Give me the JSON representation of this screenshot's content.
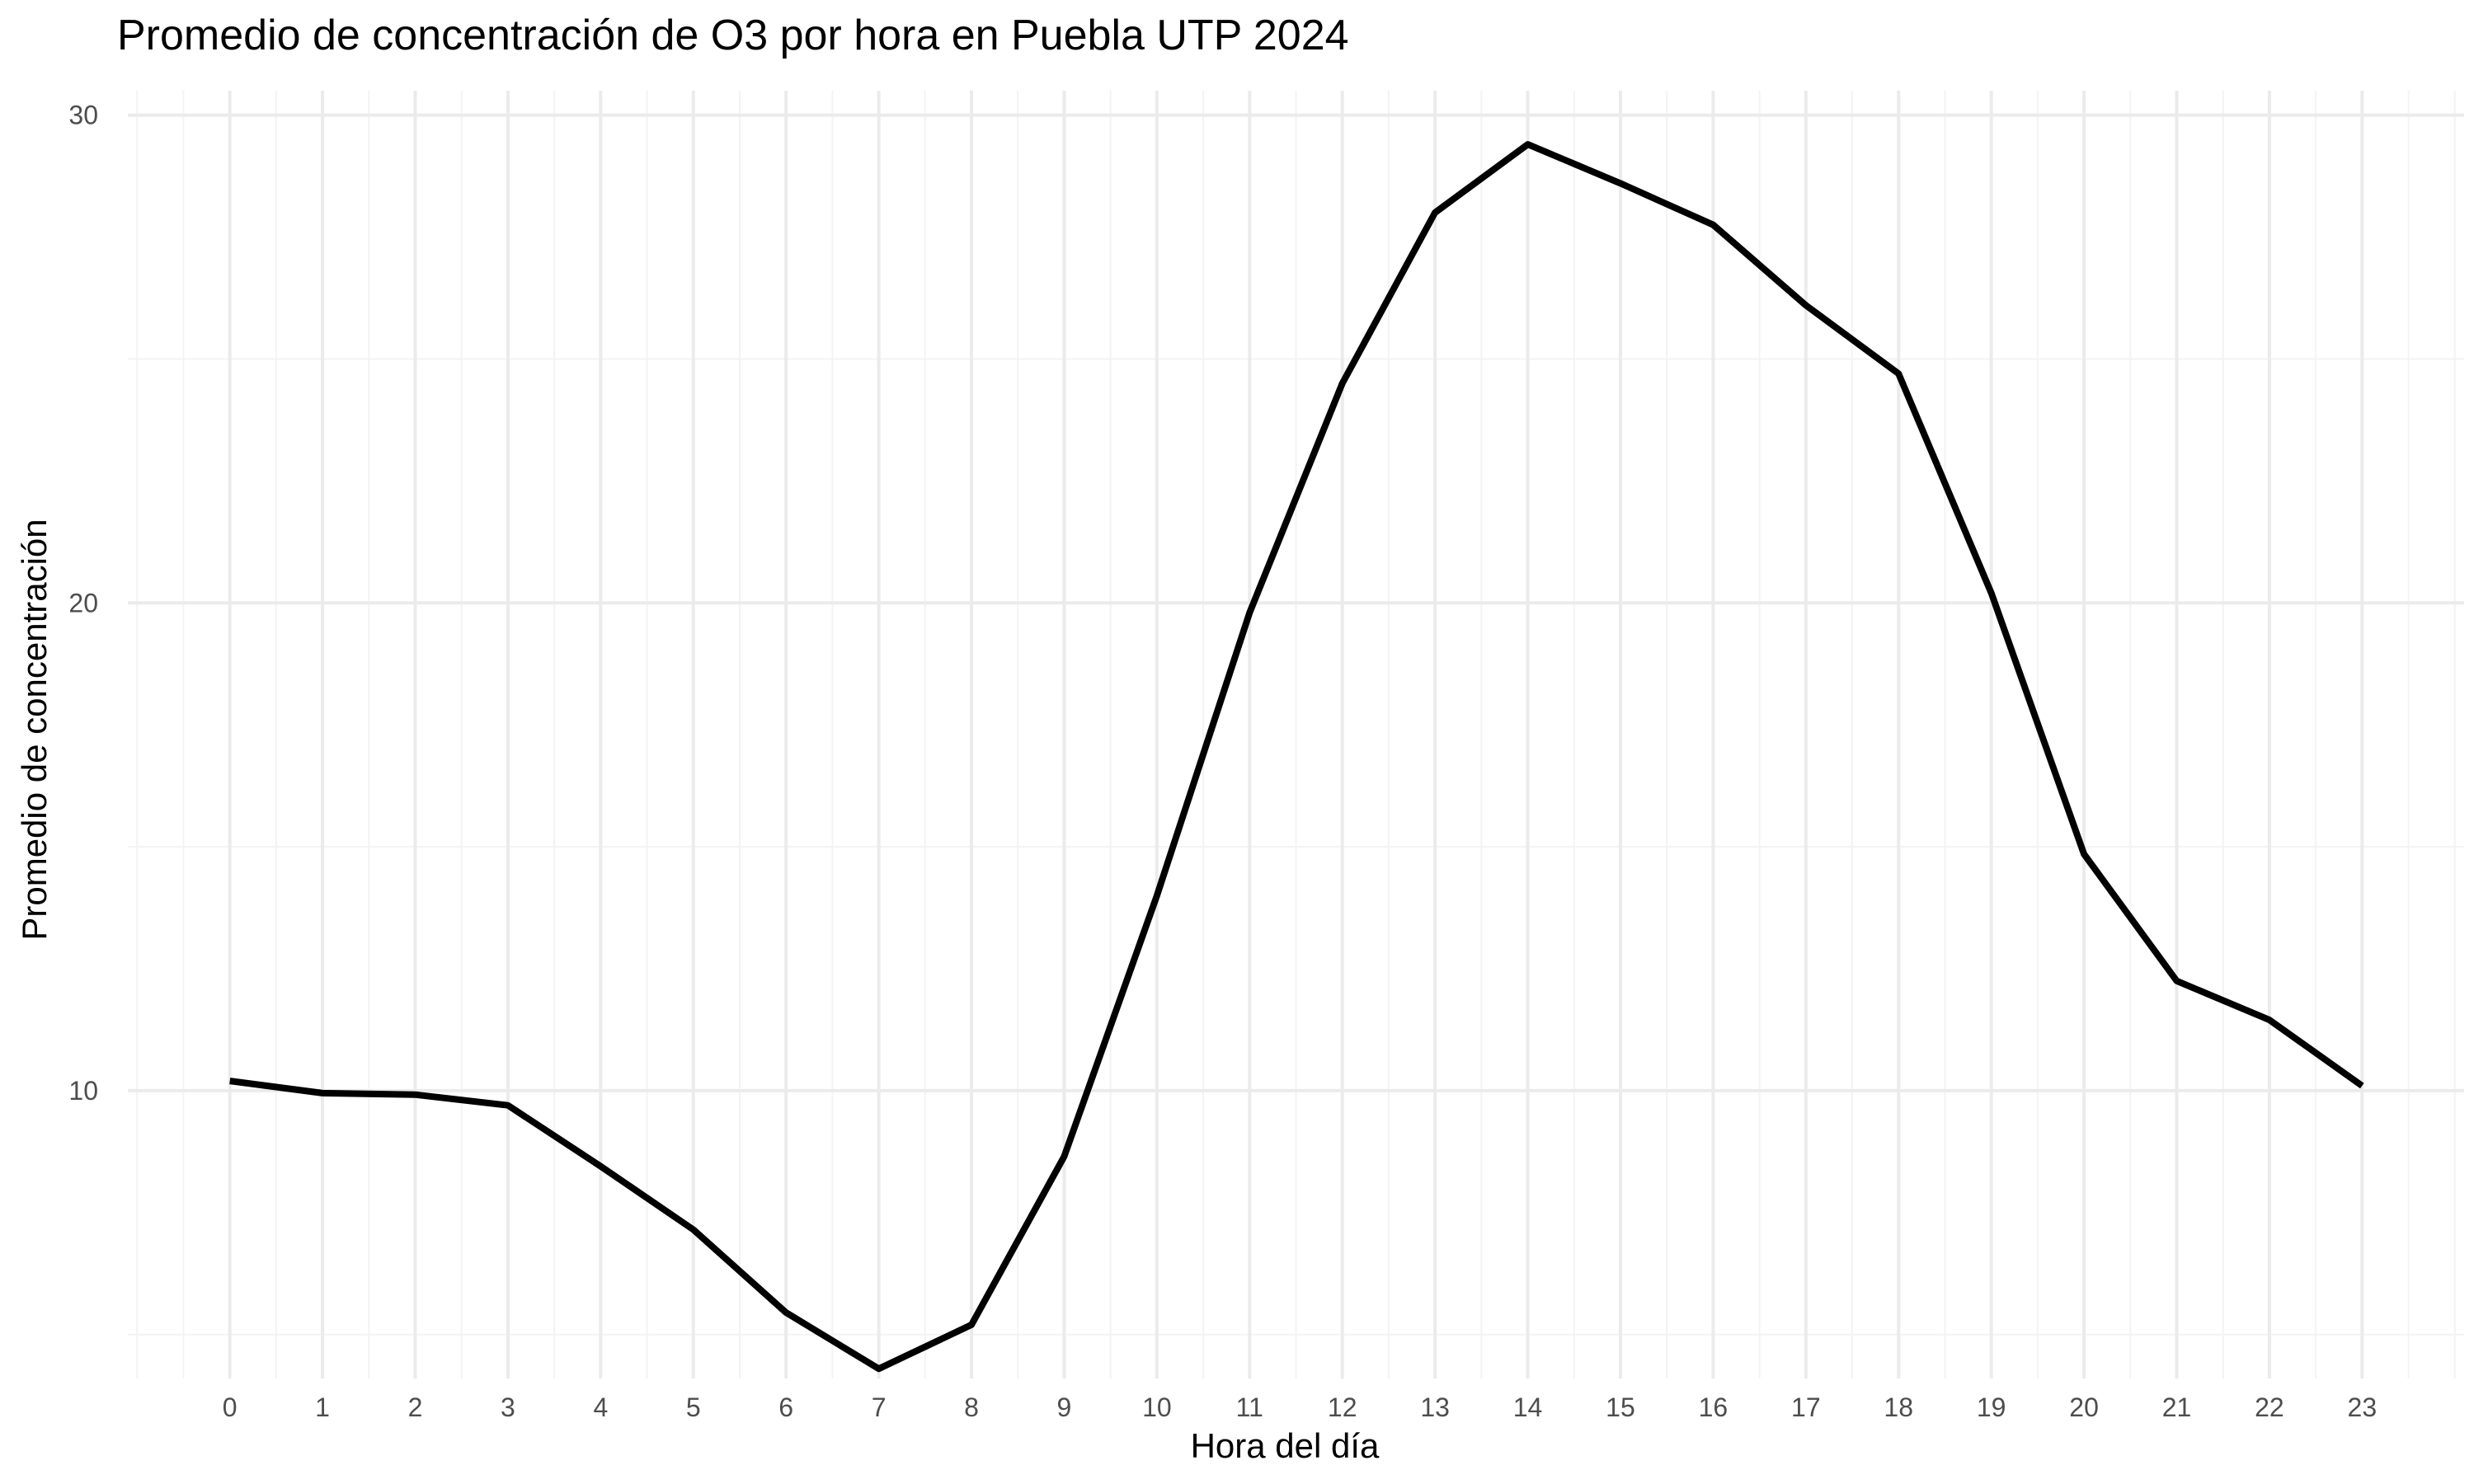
{
  "chart_data": {
    "type": "line",
    "title": "Promedio de concentración de O3 por hora en Puebla UTP 2024",
    "xlabel": "Hora del día",
    "ylabel": "Promedio de concentración",
    "x": [
      0,
      1,
      2,
      3,
      4,
      5,
      6,
      7,
      8,
      9,
      10,
      11,
      12,
      13,
      14,
      15,
      16,
      17,
      18,
      19,
      20,
      21,
      22,
      23
    ],
    "x_tick_labels": [
      "0",
      "1",
      "2",
      "3",
      "4",
      "5",
      "6",
      "7",
      "8",
      "9",
      "10",
      "11",
      "12",
      "13",
      "14",
      "15",
      "16",
      "17",
      "18",
      "19",
      "20",
      "21",
      "22",
      "23"
    ],
    "y_ticks": [
      10,
      20,
      30
    ],
    "y_tick_labels": [
      "10",
      "20",
      "30"
    ],
    "xlim": [
      -1.1,
      24.1
    ],
    "ylim": [
      4.1,
      30.5
    ],
    "grid": true,
    "series": [
      {
        "color": "#000000",
        "values": [
          10.2,
          9.95,
          9.92,
          9.7,
          8.45,
          7.15,
          5.45,
          4.3,
          5.2,
          8.65,
          14.0,
          19.8,
          24.5,
          28.0,
          29.4,
          28.6,
          27.75,
          26.1,
          24.7,
          20.2,
          14.85,
          12.25,
          11.45,
          10.1
        ]
      }
    ]
  }
}
